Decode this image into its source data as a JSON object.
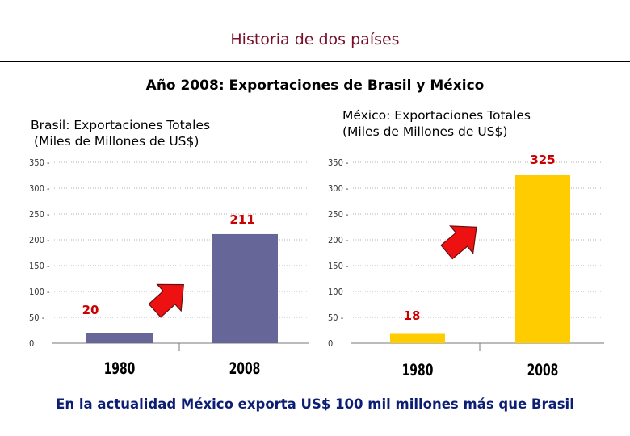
{
  "header": {
    "title": "Historia de dos países",
    "subtitle": "Año 2008: Exportaciones de Brasil y México"
  },
  "panels": {
    "brasil": {
      "title": "Brasil: Exportaciones Totales",
      "subtitle": "(Miles de Millones de US$)"
    },
    "mexico": {
      "title": "México: Exportaciones Totales",
      "subtitle": "(Miles de Millones de US$)"
    }
  },
  "footer": "En la actualidad México exporta US$ 100 mil millones más que Brasil",
  "chart_data": [
    {
      "type": "bar",
      "categories": [
        "1980",
        "2008"
      ],
      "values": [
        20,
        211
      ],
      "data_labels": [
        "20",
        "211"
      ],
      "title": "Brasil: Exportaciones Totales (Miles de Millones de US$)",
      "ylim": [
        0,
        350
      ],
      "yticks": [
        0,
        50,
        100,
        150,
        200,
        250,
        300,
        350
      ],
      "ytick_labels": [
        "0",
        "50 -",
        "100 -",
        "150 -",
        "200 -",
        "250 -",
        "300 -",
        "350 -"
      ],
      "grid": true,
      "bar_color": "#666699",
      "label_color": "#cc0000",
      "annotation": "up-arrow",
      "arrow_color": "#ee1111"
    },
    {
      "type": "bar",
      "categories": [
        "1980",
        "2008"
      ],
      "values": [
        18,
        325
      ],
      "data_labels": [
        "18",
        "325"
      ],
      "title": "México: Exportaciones Totales (Miles de Millones de US$)",
      "ylim": [
        0,
        350
      ],
      "yticks": [
        0,
        50,
        100,
        150,
        200,
        250,
        300,
        350
      ],
      "ytick_labels": [
        "0",
        "50 -",
        "100",
        "150 -",
        "200 -",
        "250 -",
        "300 -",
        "350 -"
      ],
      "grid": true,
      "bar_color": "#ffcc00",
      "label_color": "#cc0000",
      "annotation": "up-arrow",
      "arrow_color": "#ee1111"
    }
  ]
}
